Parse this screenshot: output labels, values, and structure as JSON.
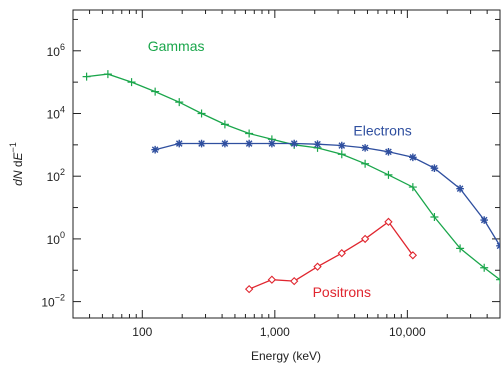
{
  "chart_data": {
    "type": "line",
    "title": "",
    "xlabel": "Energy (keV)",
    "ylabel": {
      "text": "dN dE",
      "exponent": "−1"
    },
    "xscale": "log",
    "yscale": "log",
    "xlim": [
      30,
      50000
    ],
    "ylim": [
      0.003,
      20000000
    ],
    "grid": false,
    "x_ticks": [
      {
        "value": 100,
        "label": "100"
      },
      {
        "value": 1000,
        "label": "1,000"
      },
      {
        "value": 10000,
        "label": "10,000"
      }
    ],
    "y_ticks": [
      {
        "value": 0.01,
        "base": "10",
        "exp": "−2"
      },
      {
        "value": 1,
        "base": "10",
        "exp": "0"
      },
      {
        "value": 100,
        "base": "10",
        "exp": "2"
      },
      {
        "value": 10000,
        "base": "10",
        "exp": "4"
      },
      {
        "value": 1000000,
        "base": "10",
        "exp": "6"
      }
    ],
    "series": [
      {
        "name": "Gammas",
        "color": "#1aa64b",
        "marker": "plus",
        "x": [
          38,
          55,
          83,
          125,
          190,
          280,
          420,
          640,
          950,
          1400,
          2100,
          3200,
          4800,
          7200,
          11000,
          16000,
          25000,
          38000,
          50000
        ],
        "y": [
          150000,
          180000,
          100000,
          50000,
          23000,
          10000,
          4500,
          2300,
          1500,
          1000,
          800,
          500,
          250,
          110,
          45,
          5,
          0.5,
          0.12,
          0.05
        ]
      },
      {
        "name": "Electrons",
        "color": "#2f4f9f",
        "marker": "asterisk",
        "x": [
          125,
          190,
          280,
          420,
          640,
          950,
          1400,
          2100,
          3200,
          4800,
          7200,
          11000,
          16000,
          25000,
          38000,
          50000
        ],
        "y": [
          700,
          1100,
          1100,
          1100,
          1100,
          1100,
          1100,
          1050,
          950,
          800,
          600,
          400,
          180,
          40,
          4,
          0.6
        ]
      },
      {
        "name": "Positrons",
        "color": "#e0262f",
        "marker": "diamond",
        "x": [
          640,
          950,
          1400,
          2100,
          3200,
          4800,
          7200,
          11000
        ],
        "y": [
          0.025,
          0.05,
          0.045,
          0.13,
          0.35,
          1.0,
          3.5,
          0.3
        ]
      }
    ],
    "annotations": [
      {
        "text": "Gammas",
        "series": "Gammas",
        "x": 180,
        "y": 1000000
      },
      {
        "text": "Electrons",
        "series": "Electrons",
        "x": 6500,
        "y": 2000
      },
      {
        "text": "Positrons",
        "series": "Positrons",
        "x": 3200,
        "y": 0.014
      }
    ]
  }
}
